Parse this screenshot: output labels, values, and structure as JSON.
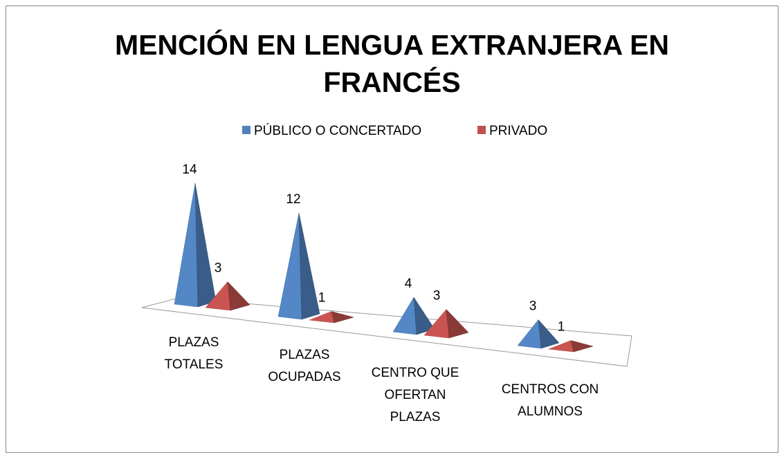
{
  "chart_data": {
    "type": "pyramid3d",
    "title": "MENCIÓN EN LENGUA EXTRANJERA EN FRANCÉS",
    "categories": [
      "PLAZAS TOTALES",
      "PLAZAS OCUPADAS",
      "CENTRO QUE OFERTAN PLAZAS",
      "CENTROS CON ALUMNOS"
    ],
    "series": [
      {
        "name": "PÚBLICO O CONCERTADO",
        "color": "#4f81bd",
        "values": [
          14,
          12,
          4,
          3
        ]
      },
      {
        "name": "PRIVADO",
        "color": "#c0504d",
        "values": [
          3,
          1,
          3,
          1
        ]
      }
    ],
    "legend": "top"
  }
}
